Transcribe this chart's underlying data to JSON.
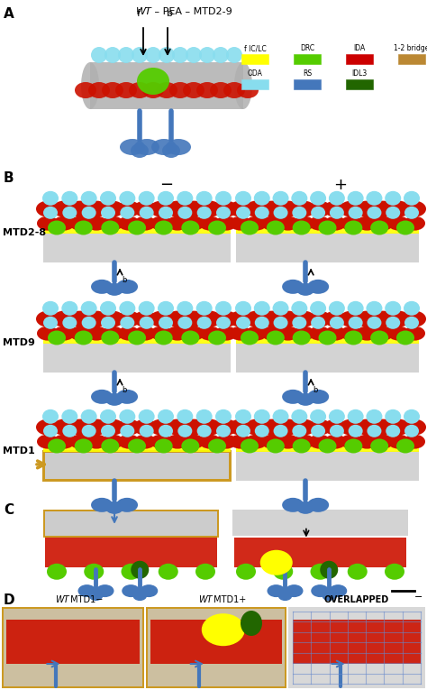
{
  "figure_width": 4.74,
  "figure_height": 7.65,
  "dpi": 100,
  "background_color": "#ffffff",
  "legend_items_row1": [
    {
      "label": "f IC/LC",
      "color": "#ffff00"
    },
    {
      "label": "DRC",
      "color": "#55cc00"
    },
    {
      "label": "IDA",
      "color": "#cc0000"
    },
    {
      "label": "1-2 bridge",
      "color": "#bb8833"
    }
  ],
  "legend_items_row2": [
    {
      "label": "ODA",
      "color": "#88ddee"
    },
    {
      "label": "RS",
      "color": "#4477bb"
    },
    {
      "label": "IDL3",
      "color": "#226600"
    }
  ],
  "panel_B_row_labels": [
    "MTD2-8",
    "MTD9",
    "MTD1"
  ],
  "panel_D_labels": [
    "WT MTD1−",
    "WT MTD1+",
    "OVERLAPPED"
  ],
  "colors": {
    "cyan_oda": "#88ddee",
    "red_ida": "#cc1100",
    "green_drc": "#55cc00",
    "yellow_ficlc": "#ffff00",
    "blue_rs": "#4477bb",
    "orange_1_2": "#bb8833",
    "darkgreen_idl3": "#226600",
    "gray_mt": "#b0b0b0",
    "gray_mt2": "#cccccc",
    "white_bg": "#ffffff",
    "orange_border": "#cc9922"
  }
}
